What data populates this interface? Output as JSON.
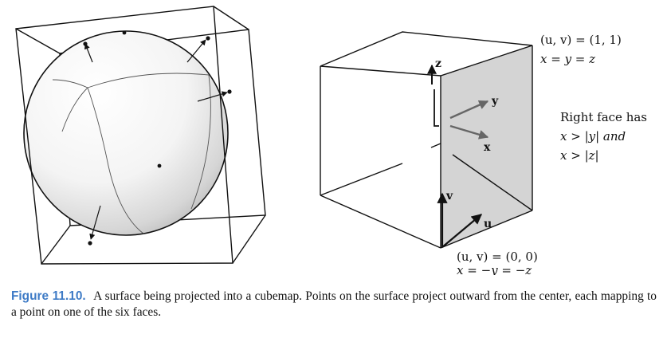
{
  "figure": {
    "labels": {
      "uv_top_tuple": "(u, v) = (1, 1)",
      "uv_top_eq": "x = y = z",
      "right_face_1": "Right face has",
      "right_face_2": "x > |y| and",
      "right_face_3": "x > |z|",
      "axis_z": "z",
      "axis_y": "y",
      "axis_x": "x",
      "axis_v": "v",
      "axis_u": "u",
      "uv_bottom_tuple": "(u, v) = (0, 0)",
      "uv_bottom_eq": "x = −y = −z"
    },
    "colors": {
      "face_shade": "#d4d4d4",
      "arrow_gray": "#666666",
      "line": "#111111"
    }
  },
  "caption": {
    "label": "Figure 11.10.",
    "text": "A surface being projected into a cubemap. Points on the surface project outward from the center, each mapping to a point on one of the six faces."
  }
}
